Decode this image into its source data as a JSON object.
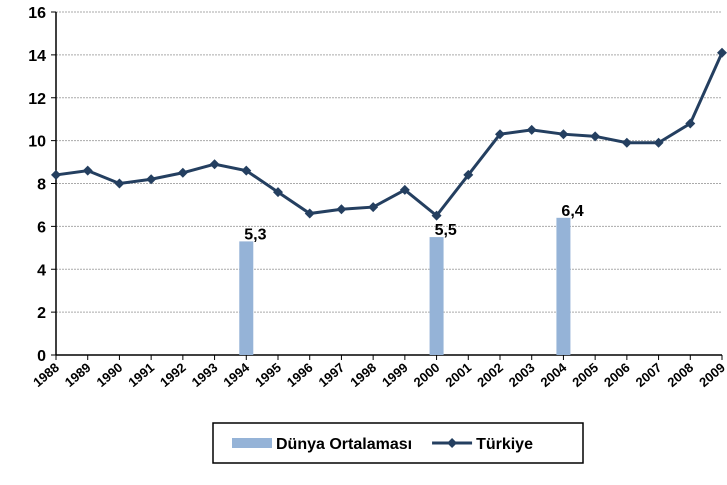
{
  "chart_data": {
    "type": "combo",
    "categories": [
      "1988",
      "1989",
      "1990",
      "1991",
      "1992",
      "1993",
      "1994",
      "1995",
      "1996",
      "1997",
      "1998",
      "1999",
      "2000",
      "2001",
      "2002",
      "2003",
      "2004",
      "2005",
      "2006",
      "2007",
      "2008",
      "2009"
    ],
    "series": [
      {
        "name": "Dünya Ortalaması",
        "type": "bar",
        "color": "#95b3d7",
        "values": [
          null,
          null,
          null,
          null,
          null,
          null,
          5.3,
          null,
          null,
          null,
          null,
          null,
          5.5,
          null,
          null,
          null,
          6.4,
          null,
          null,
          null,
          null,
          null
        ],
        "value_labels": [
          null,
          null,
          null,
          null,
          null,
          null,
          "5,3",
          null,
          null,
          null,
          null,
          null,
          "5,5",
          null,
          null,
          null,
          "6,4",
          null,
          null,
          null,
          null,
          null
        ]
      },
      {
        "name": "Türkiye",
        "type": "line",
        "color": "#243f60",
        "values": [
          8.4,
          8.6,
          8.0,
          8.2,
          8.5,
          8.9,
          8.6,
          7.6,
          6.6,
          6.8,
          6.9,
          7.7,
          6.5,
          8.4,
          10.3,
          10.5,
          10.3,
          10.2,
          9.9,
          9.9,
          10.8,
          14.1
        ]
      }
    ],
    "ylim": [
      0,
      16
    ],
    "yticks": [
      0,
      2,
      4,
      6,
      8,
      10,
      12,
      14,
      16
    ],
    "grid": true,
    "legend": "bottom"
  }
}
